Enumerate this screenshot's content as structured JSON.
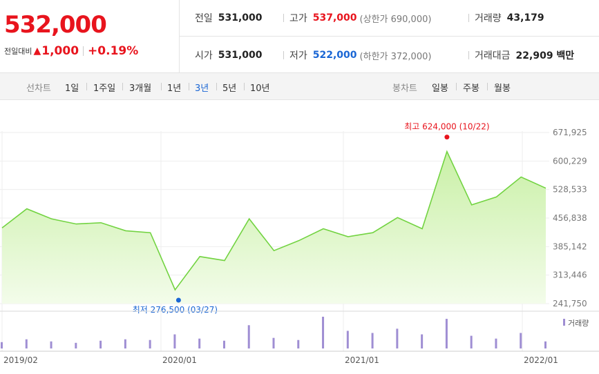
{
  "quote": {
    "price": "532,000",
    "change_label": "전일대비",
    "change_arrow": "▲",
    "change_value": "1,000",
    "change_pct": "+0.19%"
  },
  "stats": {
    "prev_close": {
      "label": "전일",
      "value": "531,000"
    },
    "high": {
      "label": "고가",
      "value": "537,000",
      "sub": "(상한가 690,000)"
    },
    "volume": {
      "label": "거래량",
      "value": "43,179"
    },
    "open": {
      "label": "시가",
      "value": "531,000"
    },
    "low": {
      "label": "저가",
      "value": "522,000",
      "sub": "(하한가 372,000)"
    },
    "amount": {
      "label": "거래대금",
      "value": "22,909 백만"
    }
  },
  "tabs": {
    "line_label": "선차트",
    "line_items": [
      "1일",
      "1주일",
      "3개월",
      "1년",
      "3년",
      "5년",
      "10년"
    ],
    "active": "3년",
    "candle_label": "봉차트",
    "candle_items": [
      "일봉",
      "주봉",
      "월봉"
    ]
  },
  "colors": {
    "up": "#e8141d",
    "down": "#1a66d4",
    "line": "#72d341",
    "fill_top": "#c9f0a6",
    "volume": "#9f8ed3"
  },
  "chart_data": {
    "type": "area",
    "ylim": [
      241750,
      671925
    ],
    "yticks": [
      "671,925",
      "600,229",
      "528,533",
      "456,838",
      "385,142",
      "313,446",
      "241,750"
    ],
    "xticks": [
      "2019/02",
      "2020/01",
      "2021/01",
      "2022/01"
    ],
    "x_dates": [
      "2019/02",
      "2019/04",
      "2019/06",
      "2019/08",
      "2019/10",
      "2019/12",
      "2020/02",
      "2020/03/27",
      "2020/04",
      "2020/06",
      "2020/08",
      "2020/10",
      "2020/12",
      "2021/02",
      "2021/04",
      "2021/06",
      "2021/07",
      "2021/08",
      "2021/10/22",
      "2021/11",
      "2021/12",
      "2022/01",
      "2022/02"
    ],
    "close": [
      432000,
      480000,
      455000,
      442000,
      445000,
      425000,
      420000,
      276500,
      360000,
      350000,
      455000,
      375000,
      400000,
      430000,
      410000,
      420000,
      458000,
      430000,
      624000,
      490000,
      510000,
      560000,
      532000
    ],
    "high_label": "최고 624,000 (10/22)",
    "low_label": "최저 276,500 (03/27)",
    "volume_label": "거래량",
    "volume": [
      9,
      13,
      10,
      8,
      11,
      13,
      12,
      20,
      14,
      11,
      33,
      15,
      12,
      45,
      25,
      22,
      28,
      20,
      42,
      18,
      14,
      22,
      10
    ]
  }
}
